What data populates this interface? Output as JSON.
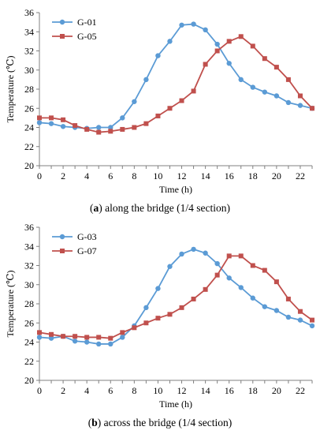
{
  "colors": {
    "series_a": "#5b9bd5",
    "series_b": "#c0504d"
  },
  "chart_data": [
    {
      "type": "line",
      "caption_tag": "a",
      "caption_text": " along the bridge (1/4 section)",
      "xlabel": "Time (h)",
      "ylabel": "Temperature (℃)",
      "xlim": [
        0,
        23
      ],
      "ylim": [
        20,
        36
      ],
      "xticks": [
        0,
        2,
        4,
        6,
        8,
        10,
        12,
        14,
        16,
        18,
        20,
        22
      ],
      "yticks": [
        20,
        22,
        24,
        26,
        28,
        30,
        32,
        34,
        36
      ],
      "grid": false,
      "legend": "top-left",
      "x": [
        0,
        1,
        2,
        3,
        4,
        5,
        6,
        7,
        8,
        9,
        10,
        11,
        12,
        13,
        14,
        15,
        16,
        17,
        18,
        19,
        20,
        21,
        22,
        23
      ],
      "series": [
        {
          "name": "G-01",
          "color": "#5b9bd5",
          "marker": "circle",
          "values": [
            24.5,
            24.4,
            24.1,
            24.0,
            23.9,
            24.0,
            24.0,
            25.0,
            26.7,
            29.0,
            31.5,
            33.0,
            34.7,
            34.8,
            34.2,
            32.7,
            30.7,
            29.0,
            28.2,
            27.7,
            27.3,
            26.6,
            26.3,
            26.0
          ]
        },
        {
          "name": "G-05",
          "color": "#c0504d",
          "marker": "square",
          "values": [
            25.0,
            25.0,
            24.8,
            24.2,
            23.8,
            23.5,
            23.6,
            23.8,
            24.0,
            24.4,
            25.2,
            26.0,
            26.8,
            27.8,
            30.6,
            32.0,
            33.0,
            33.5,
            32.5,
            31.2,
            30.3,
            29.0,
            27.3,
            26.0
          ]
        }
      ]
    },
    {
      "type": "line",
      "caption_tag": "b",
      "caption_text": " across the bridge (1/4 section)",
      "xlabel": "Time (h)",
      "ylabel": "Temperature (℃)",
      "xlim": [
        0,
        23
      ],
      "ylim": [
        20,
        36
      ],
      "xticks": [
        0,
        2,
        4,
        6,
        8,
        10,
        12,
        14,
        16,
        18,
        20,
        22
      ],
      "yticks": [
        20,
        22,
        24,
        26,
        28,
        30,
        32,
        34,
        36
      ],
      "grid": false,
      "legend": "top-left",
      "x": [
        0,
        1,
        2,
        3,
        4,
        5,
        6,
        7,
        8,
        9,
        10,
        11,
        12,
        13,
        14,
        15,
        16,
        17,
        18,
        19,
        20,
        21,
        22,
        23
      ],
      "series": [
        {
          "name": "G-03",
          "color": "#5b9bd5",
          "marker": "circle",
          "values": [
            24.5,
            24.4,
            24.6,
            24.1,
            24.0,
            23.8,
            23.8,
            24.5,
            25.7,
            27.6,
            29.6,
            31.9,
            33.2,
            33.7,
            33.3,
            32.2,
            30.7,
            29.7,
            28.6,
            27.7,
            27.3,
            26.6,
            26.3,
            25.7
          ]
        },
        {
          "name": "G-07",
          "color": "#c0504d",
          "marker": "square",
          "values": [
            25.0,
            24.8,
            24.6,
            24.6,
            24.5,
            24.5,
            24.4,
            25.0,
            25.5,
            26.0,
            26.5,
            26.9,
            27.6,
            28.5,
            29.5,
            31.0,
            33.0,
            33.0,
            32.0,
            31.5,
            30.3,
            28.5,
            27.2,
            26.3
          ]
        }
      ]
    }
  ]
}
